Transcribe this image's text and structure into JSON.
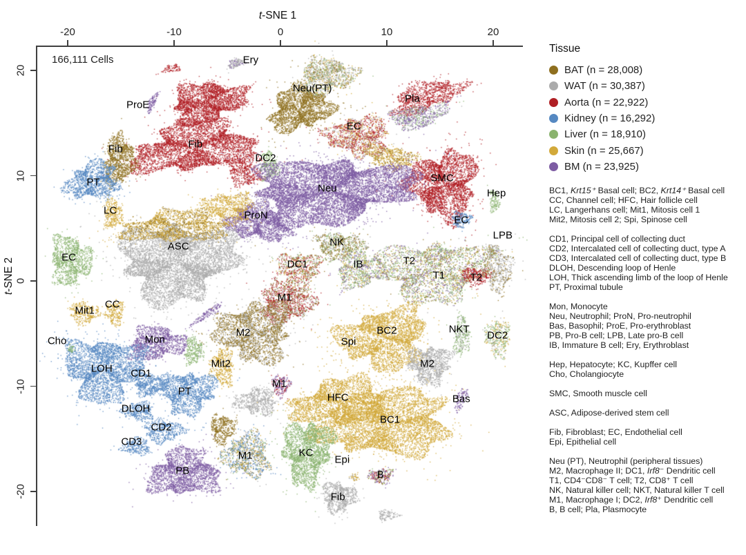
{
  "figure": {
    "cells_count_label": "166,111 Cells",
    "x_axis": {
      "label_italic": "t",
      "label_rest": "-SNE 1"
    },
    "y_axis": {
      "label_italic": "t",
      "label_rest": "-SNE 2"
    }
  },
  "legend": {
    "title": "Tissue",
    "items": [
      {
        "label": "BAT (n = 28,008)",
        "color": "#8e6f1f"
      },
      {
        "label": "WAT (n = 30,387)",
        "color": "#ababab"
      },
      {
        "label": "Aorta (n = 22,922)",
        "color": "#b01f24"
      },
      {
        "label": "Kidney (n = 16,292)",
        "color": "#5588c1"
      },
      {
        "label": "Liver (n = 18,910)",
        "color": "#8ab36e"
      },
      {
        "label": "Skin (n = 25,667)",
        "color": "#d2a93a"
      },
      {
        "label": "BM (n = 23,925)",
        "color": "#7d5ca3"
      }
    ]
  },
  "abbreviations": {
    "blocks": [
      [
        "BC1, *Krt15⁺* Basal cell; BC2, *Krt14⁺* Basal cell",
        "CC, Channel cell; HFC, Hair follicle cell",
        "LC, Langerhans cell; Mit1, Mitosis cell 1",
        "Mit2, Mitosis cell 2; Spi, Spinose cell"
      ],
      [
        "CD1, Principal cell of collecting duct",
        "CD2, Intercalated cell of collecting duct, type A",
        "CD3, Intercalated cell of collecting duct, type B",
        "DLOH, Descending loop of Henle",
        "LOH, Thick ascending limb of the loop of Henle",
        "PT, Proximal tubule"
      ],
      [
        "Mon, Monocyte",
        "Neu, Neutrophil; ProN, Pro-neutrophil",
        "Bas, Basophil; ProE, Pro-erythroblast",
        "PB, Pro-B cell; LPB, Late pro-B cell",
        "IB, Immature B cell; Ery, Erythroblast"
      ],
      [
        "Hep, Hepatocyte; KC, Kupffer cell",
        "Cho, Cholangiocyte"
      ],
      [
        "SMC, Smooth muscle cell"
      ],
      [
        "ASC, Adipose-derived stem cell"
      ],
      [
        "Fib, Fibroblast; EC, Endothelial cell",
        "Epi, Epithelial cell"
      ],
      [
        "Neu (PT), Neutrophil (peripheral tissues)",
        "M2, Macrophage II; DC1, *Irf8*⁻ Dendritic cell",
        "T1, CD4⁻CD8⁻ T cell; T2, CD8⁺ T cell",
        "NK, Natural killer cell; NKT, Natural killer T cell",
        "M1, Macrophage I; DC2, *Irf8*⁺ Dendritic cell",
        "B, B cell; Pla, Plasmocyte"
      ]
    ]
  },
  "chart_data": {
    "type": "scatter",
    "title": "166,111 Cells",
    "xlabel": "t-SNE 1",
    "ylabel": "t-SNE 2",
    "xlim": [
      -23,
      23
    ],
    "ylim": [
      -23.3,
      22.3
    ],
    "x_ticks": [
      -20,
      -10,
      0,
      10,
      20
    ],
    "y_ticks": [
      20,
      10,
      0,
      -10,
      -20
    ],
    "legend_position": "right",
    "grid": false,
    "tissue_colors": {
      "BAT": "#8e6f1f",
      "WAT": "#ababab",
      "Aorta": "#b01f24",
      "Kidney": "#5588c1",
      "Liver": "#8ab36e",
      "Skin": "#d2a93a",
      "BM": "#7d5ca3"
    },
    "series": [
      {
        "name": "BAT",
        "count": 28008
      },
      {
        "name": "WAT",
        "count": 30387
      },
      {
        "name": "Aorta",
        "count": 22922
      },
      {
        "name": "Kidney",
        "count": 16292
      },
      {
        "name": "Liver",
        "count": 18910
      },
      {
        "name": "Skin",
        "count": 25667
      },
      {
        "name": "BM",
        "count": 23925
      }
    ],
    "clusters": [
      {
        "x": -4.2,
        "y": 20.7,
        "rx": 0.8,
        "ry": 0.4,
        "rot": -15,
        "c": [
          "WAT",
          "BM"
        ],
        "n": 150
      },
      {
        "x": -10.3,
        "y": 20.2,
        "rx": 0.9,
        "ry": 0.35,
        "rot": -10,
        "c": [
          "Aorta"
        ],
        "n": 90
      },
      {
        "x": -6.9,
        "y": 17.0,
        "rx": 3.4,
        "ry": 1.85,
        "rot": -12,
        "c": [
          "Aorta"
        ],
        "n": 2800
      },
      {
        "x": -8.1,
        "y": 12.7,
        "rx": 5.7,
        "ry": 2.25,
        "rot": -7,
        "c": [
          "Aorta"
        ],
        "n": 4200
      },
      {
        "x": -3.5,
        "y": 10.4,
        "rx": 1.7,
        "ry": 1.2,
        "rot": 30,
        "c": [
          "Aorta"
        ],
        "n": 500
      },
      {
        "x": -12.1,
        "y": 17.0,
        "rx": 0.3,
        "ry": 1.1,
        "rot": 25,
        "c": [
          "BM"
        ],
        "n": 130
      },
      {
        "x": -15.2,
        "y": 11.5,
        "rx": 1.4,
        "ry": 2.35,
        "rot": 8,
        "c": [
          "BAT"
        ],
        "n": 1100
      },
      {
        "x": 1.8,
        "y": 16.4,
        "rx": 2.85,
        "ry": 2.0,
        "rot": -15,
        "c": [
          "BAT"
        ],
        "n": 2300
      },
      {
        "x": 4.3,
        "y": 19.5,
        "rx": 2.6,
        "ry": 1.7,
        "rot": -10,
        "c": [
          "WAT",
          "BAT",
          "Liver",
          "Skin"
        ],
        "n": 1300
      },
      {
        "x": 13.7,
        "y": 17.6,
        "rx": 3.4,
        "ry": 1.3,
        "rot": -18,
        "c": [
          "Aorta"
        ],
        "n": 1100
      },
      {
        "x": 13.0,
        "y": 15.7,
        "rx": 2.7,
        "ry": 1.05,
        "rot": -12,
        "c": [
          "BM",
          "WAT",
          "Liver"
        ],
        "n": 700
      },
      {
        "x": 7.3,
        "y": 13.8,
        "rx": 2.85,
        "ry": 1.85,
        "rot": 0,
        "c": [
          "Aorta",
          "Skin",
          "WAT"
        ],
        "n": 1500
      },
      {
        "x": 10.3,
        "y": 11.8,
        "rx": 2.45,
        "ry": 1.05,
        "rot": 10,
        "c": [
          "Skin",
          "BAT"
        ],
        "n": 600
      },
      {
        "x": -1.1,
        "y": 10.9,
        "rx": 0.85,
        "ry": 1.3,
        "rot": 0,
        "c": [
          "Liver"
        ],
        "n": 300
      },
      {
        "x": 15.3,
        "y": 9.2,
        "rx": 3.1,
        "ry": 3.1,
        "rot": 0,
        "c": [
          "Aorta"
        ],
        "n": 3400
      },
      {
        "x": 20.1,
        "y": 7.6,
        "rx": 0.45,
        "ry": 1.0,
        "rot": 0,
        "c": [
          "Liver"
        ],
        "n": 130
      },
      {
        "x": -17.7,
        "y": 9.5,
        "rx": 2.45,
        "ry": 1.7,
        "rot": -12,
        "c": [
          "Kidney"
        ],
        "n": 1400
      },
      {
        "x": 4.7,
        "y": 8.6,
        "rx": 7.3,
        "ry": 3.0,
        "rot": -4,
        "c": [
          "BM"
        ],
        "n": 8500
      },
      {
        "x": -2.1,
        "y": 5.6,
        "rx": 2.85,
        "ry": 1.7,
        "rot": 10,
        "c": [
          "BM"
        ],
        "n": 1900
      },
      {
        "x": -15.8,
        "y": 6.4,
        "rx": 0.9,
        "ry": 1.4,
        "rot": 0,
        "c": [
          "Skin"
        ],
        "n": 350
      },
      {
        "x": 17.0,
        "y": 5.9,
        "rx": 0.9,
        "ry": 0.7,
        "rot": 0,
        "c": [
          "Kidney"
        ],
        "n": 220
      },
      {
        "x": 19.9,
        "y": 3.0,
        "rx": 0.65,
        "ry": 0.5,
        "rot": 0,
        "c": [
          "WAT",
          "BAT"
        ],
        "n": 100
      },
      {
        "x": -9.7,
        "y": 1.9,
        "rx": 5.3,
        "ry": 3.6,
        "rot": -5,
        "c": [
          "WAT"
        ],
        "n": 6500
      },
      {
        "x": -9.9,
        "y": 5.2,
        "rx": 4.7,
        "ry": 1.45,
        "rot": -3,
        "c": [
          "Skin",
          "BAT"
        ],
        "n": 1900
      },
      {
        "x": -4.9,
        "y": 7.0,
        "rx": 2.3,
        "ry": 1.45,
        "rot": 0,
        "c": [
          "Skin"
        ],
        "n": 800
      },
      {
        "x": -19.8,
        "y": 2.0,
        "rx": 1.9,
        "ry": 2.25,
        "rot": 0,
        "c": [
          "Liver"
        ],
        "n": 1200
      },
      {
        "x": 5.5,
        "y": 3.4,
        "rx": 2.2,
        "ry": 1.25,
        "rot": 0,
        "c": [
          "BAT",
          "WAT",
          "Liver"
        ],
        "n": 700
      },
      {
        "x": 1.7,
        "y": 1.1,
        "rx": 1.95,
        "ry": 1.7,
        "rot": 0,
        "c": [
          "Aorta",
          "Skin",
          "WAT",
          "Liver",
          "BAT"
        ],
        "n": 800
      },
      {
        "x": 7.4,
        "y": 1.1,
        "rx": 2.2,
        "ry": 1.75,
        "rot": 0,
        "c": [
          "Liver",
          "BM",
          "WAT",
          "Skin"
        ],
        "n": 900
      },
      {
        "x": 14.5,
        "y": 1.0,
        "rx": 5.3,
        "ry": 2.75,
        "rot": -3,
        "c": [
          "Liver",
          "WAT",
          "Skin",
          "BAT",
          "BM"
        ],
        "n": 2800
      },
      {
        "x": 18.3,
        "y": 0.5,
        "rx": 1.4,
        "ry": 0.8,
        "rot": 0,
        "c": [
          "Aorta"
        ],
        "n": 300
      },
      {
        "x": 20.5,
        "y": 1.0,
        "rx": 1.3,
        "ry": 1.95,
        "rot": 0,
        "c": [
          "WAT",
          "BAT"
        ],
        "n": 450
      },
      {
        "x": -18.5,
        "y": -3.0,
        "rx": 1.35,
        "ry": 1.0,
        "rot": 0,
        "c": [
          "Skin"
        ],
        "n": 350
      },
      {
        "x": -15.6,
        "y": -3.0,
        "rx": 0.8,
        "ry": 1.2,
        "rot": 0,
        "c": [
          "Skin"
        ],
        "n": 260
      },
      {
        "x": 0.5,
        "y": -2.0,
        "rx": 2.45,
        "ry": 1.85,
        "rot": 0,
        "c": [
          "Aorta",
          "BAT",
          "WAT"
        ],
        "n": 1300
      },
      {
        "x": -11.7,
        "y": -5.9,
        "rx": 2.6,
        "ry": 1.55,
        "rot": -6,
        "c": [
          "BM"
        ],
        "n": 1300
      },
      {
        "x": -6.9,
        "y": -3.1,
        "rx": 1.8,
        "ry": 0.3,
        "rot": -35,
        "c": [
          "BM"
        ],
        "n": 160
      },
      {
        "x": -8.2,
        "y": -6.6,
        "rx": 0.85,
        "ry": 1.3,
        "rot": 0,
        "c": [
          "Liver"
        ],
        "n": 300
      },
      {
        "x": -5.5,
        "y": -8.1,
        "rx": 1.1,
        "ry": 1.7,
        "rot": 0,
        "c": [
          "Skin"
        ],
        "n": 450
      },
      {
        "x": -16.6,
        "y": -8.3,
        "rx": 3.6,
        "ry": 2.9,
        "rot": 0,
        "c": [
          "Kidney"
        ],
        "n": 3200
      },
      {
        "x": -12.3,
        "y": -9.8,
        "rx": 1.55,
        "ry": 1.05,
        "rot": 0,
        "c": [
          "Kidney"
        ],
        "n": 550
      },
      {
        "x": -8.8,
        "y": -10.5,
        "rx": 2.55,
        "ry": 1.95,
        "rot": 0,
        "c": [
          "Kidney"
        ],
        "n": 1500
      },
      {
        "x": -13.4,
        "y": -12.3,
        "rx": 1.45,
        "ry": 0.85,
        "rot": 0,
        "c": [
          "Kidney"
        ],
        "n": 380
      },
      {
        "x": -11.0,
        "y": -14.2,
        "rx": 1.9,
        "ry": 1.05,
        "rot": 0,
        "c": [
          "Kidney"
        ],
        "n": 500
      },
      {
        "x": -13.6,
        "y": -15.7,
        "rx": 1.25,
        "ry": 0.8,
        "rot": 0,
        "c": [
          "Kidney"
        ],
        "n": 280
      },
      {
        "x": -2.5,
        "y": -4.8,
        "rx": 3.4,
        "ry": 2.75,
        "rot": 0,
        "c": [
          "BAT",
          "WAT"
        ],
        "n": 2700
      },
      {
        "x": 9.7,
        "y": -5.4,
        "rx": 4.0,
        "ry": 2.8,
        "rot": -8,
        "c": [
          "Skin"
        ],
        "n": 3400
      },
      {
        "x": 14.0,
        "y": -7.9,
        "rx": 1.95,
        "ry": 1.75,
        "rot": 0,
        "c": [
          "WAT"
        ],
        "n": 1100
      },
      {
        "x": 17.0,
        "y": -5.2,
        "rx": 0.7,
        "ry": 1.85,
        "rot": 0,
        "c": [
          "Liver",
          "WAT"
        ],
        "n": 320
      },
      {
        "x": 20.4,
        "y": -5.4,
        "rx": 1.1,
        "ry": 1.7,
        "rot": 0,
        "c": [
          "Liver",
          "Skin",
          "WAT"
        ],
        "n": 380
      },
      {
        "x": 0.0,
        "y": -9.9,
        "rx": 0.8,
        "ry": 1.0,
        "rot": 0,
        "c": [
          "BM",
          "Aorta"
        ],
        "n": 220
      },
      {
        "x": 5.7,
        "y": -11.5,
        "rx": 4.4,
        "ry": 2.15,
        "rot": -5,
        "c": [
          "Skin"
        ],
        "n": 3000
      },
      {
        "x": 10.0,
        "y": -13.6,
        "rx": 6.0,
        "ry": 2.9,
        "rot": -6,
        "c": [
          "Skin"
        ],
        "n": 5000
      },
      {
        "x": 16.9,
        "y": -11.3,
        "rx": 0.45,
        "ry": 1.2,
        "rot": 20,
        "c": [
          "BM"
        ],
        "n": 110
      },
      {
        "x": -5.5,
        "y": -14.0,
        "rx": 1.1,
        "ry": 1.4,
        "rot": 0,
        "c": [
          "BAT"
        ],
        "n": 450
      },
      {
        "x": -2.3,
        "y": -11.4,
        "rx": 1.9,
        "ry": 1.25,
        "rot": 0,
        "c": [
          "WAT"
        ],
        "n": 650
      },
      {
        "x": -3.2,
        "y": -16.5,
        "rx": 2.15,
        "ry": 2.05,
        "rot": 0,
        "c": [
          "Kidney",
          "BAT",
          "Skin",
          "WAT",
          "Liver"
        ],
        "n": 1100
      },
      {
        "x": 2.5,
        "y": -16.2,
        "rx": 2.2,
        "ry": 3.0,
        "rot": 8,
        "c": [
          "Liver"
        ],
        "n": 2300
      },
      {
        "x": 6.9,
        "y": -18.6,
        "rx": 0.5,
        "ry": 0.35,
        "rot": 0,
        "c": [
          "Skin",
          "WAT"
        ],
        "n": 50
      },
      {
        "x": -9.1,
        "y": -18.2,
        "rx": 3.2,
        "ry": 2.15,
        "rot": -5,
        "c": [
          "BM"
        ],
        "n": 2300
      },
      {
        "x": 9.4,
        "y": -18.5,
        "rx": 1.1,
        "ry": 0.7,
        "rot": 0,
        "c": [
          "BM",
          "Liver",
          "Aorta",
          "BAT"
        ],
        "n": 280
      },
      {
        "x": 5.5,
        "y": -20.5,
        "rx": 1.55,
        "ry": 1.4,
        "rot": 0,
        "c": [
          "WAT"
        ],
        "n": 750
      },
      {
        "x": 10.0,
        "y": -22.2,
        "rx": 0.9,
        "ry": 0.45,
        "rot": 0,
        "c": [
          "WAT"
        ],
        "n": 130
      },
      {
        "x": -19.7,
        "y": -6.4,
        "rx": 0.35,
        "ry": 0.4,
        "rot": 0,
        "c": [
          "Liver"
        ],
        "n": 40
      }
    ],
    "labels": [
      {
        "t": "Ery",
        "x": -2.8,
        "y": 21.0
      },
      {
        "t": "Neu(PT)",
        "x": 3.0,
        "y": 18.3
      },
      {
        "t": "Pla",
        "x": 12.4,
        "y": 17.3
      },
      {
        "t": "ProE",
        "x": -13.4,
        "y": 16.7
      },
      {
        "t": "EC",
        "x": 6.9,
        "y": 14.7
      },
      {
        "t": "Fib",
        "x": -15.5,
        "y": 12.5
      },
      {
        "t": "Fib",
        "x": -8.0,
        "y": 13.0
      },
      {
        "t": "DC2",
        "x": -1.4,
        "y": 11.7
      },
      {
        "t": "SMC",
        "x": 15.2,
        "y": 9.8
      },
      {
        "t": "Hep",
        "x": 20.3,
        "y": 8.3
      },
      {
        "t": "PT",
        "x": -17.6,
        "y": 9.4
      },
      {
        "t": "Neu",
        "x": 4.4,
        "y": 8.8
      },
      {
        "t": "LC",
        "x": -16.0,
        "y": 6.7
      },
      {
        "t": "ProN",
        "x": -2.3,
        "y": 6.2
      },
      {
        "t": "EC",
        "x": 17.0,
        "y": 5.8
      },
      {
        "t": "LPB",
        "x": 20.9,
        "y": 4.3
      },
      {
        "t": "ASC",
        "x": -9.6,
        "y": 3.3
      },
      {
        "t": "NK",
        "x": 5.3,
        "y": 3.7
      },
      {
        "t": "EC",
        "x": -19.9,
        "y": 2.2
      },
      {
        "t": "DC1",
        "x": 1.6,
        "y": 1.6
      },
      {
        "t": "IB",
        "x": 7.3,
        "y": 1.6
      },
      {
        "t": "T2",
        "x": 12.1,
        "y": 1.9
      },
      {
        "t": "T1",
        "x": 14.9,
        "y": 0.5
      },
      {
        "t": "T2",
        "x": 18.4,
        "y": 0.3
      },
      {
        "t": "Mit1",
        "x": -18.4,
        "y": -2.8
      },
      {
        "t": "CC",
        "x": -15.8,
        "y": -2.2
      },
      {
        "t": "M1",
        "x": 0.4,
        "y": -1.6
      },
      {
        "t": "NKT",
        "x": 16.8,
        "y": -4.6
      },
      {
        "t": "Cho",
        "x": -21.0,
        "y": -5.7
      },
      {
        "t": "Mon",
        "x": -11.8,
        "y": -5.6
      },
      {
        "t": "DC2",
        "x": 20.4,
        "y": -5.2
      },
      {
        "t": "M2",
        "x": -3.5,
        "y": -4.9
      },
      {
        "t": "BC2",
        "x": 10.0,
        "y": -4.7
      },
      {
        "t": "Spi",
        "x": 6.4,
        "y": -5.8
      },
      {
        "t": "LOH",
        "x": -16.8,
        "y": -8.3
      },
      {
        "t": "CD1",
        "x": -13.1,
        "y": -8.8
      },
      {
        "t": "Mit2",
        "x": -5.6,
        "y": -7.9
      },
      {
        "t": "M2",
        "x": 13.8,
        "y": -7.9
      },
      {
        "t": "M1",
        "x": -0.1,
        "y": -9.8
      },
      {
        "t": "PT",
        "x": -9.0,
        "y": -10.5
      },
      {
        "t": "DLOH",
        "x": -13.6,
        "y": -12.1
      },
      {
        "t": "HFC",
        "x": 5.4,
        "y": -11.1
      },
      {
        "t": "Bas",
        "x": 17.0,
        "y": -11.2
      },
      {
        "t": "CD2",
        "x": -11.2,
        "y": -13.9
      },
      {
        "t": "BC1",
        "x": 10.3,
        "y": -13.2
      },
      {
        "t": "CD3",
        "x": -14.0,
        "y": -15.3
      },
      {
        "t": "M1",
        "x": -3.3,
        "y": -16.6
      },
      {
        "t": "KC",
        "x": 2.4,
        "y": -16.3
      },
      {
        "t": "Epi",
        "x": 5.8,
        "y": -17.0
      },
      {
        "t": "PB",
        "x": -9.2,
        "y": -18.0
      },
      {
        "t": "B",
        "x": 9.4,
        "y": -18.4
      },
      {
        "t": "Fib",
        "x": 5.4,
        "y": -20.5
      }
    ]
  }
}
